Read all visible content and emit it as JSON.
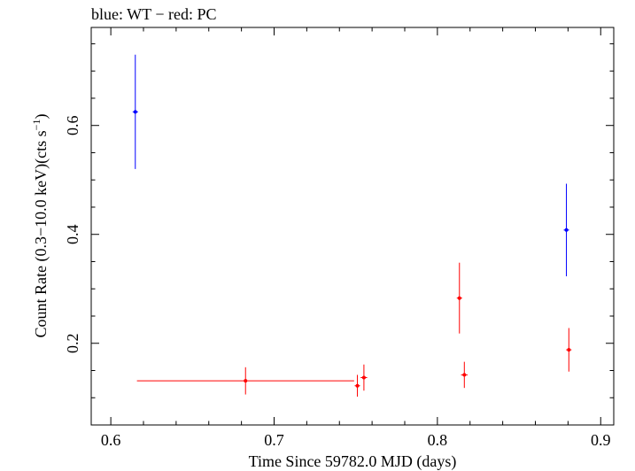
{
  "chart_data": {
    "type": "scatter",
    "title": "blue: WT − red: PC",
    "xlabel": "Time Since 59782.0 MJD (days)",
    "ylabel_main": "Count Rate (0.3−10.0 keV)(cts s",
    "ylabel_sup": "−1",
    "ylabel_close": ")",
    "xlim": [
      0.588,
      0.908
    ],
    "ylim": [
      0.05,
      0.78
    ],
    "x_ticks": [
      0.6,
      0.7,
      0.8,
      0.9
    ],
    "x_tick_labels": [
      "0.6",
      "0.7",
      "0.8",
      "0.9"
    ],
    "y_ticks": [
      0.2,
      0.4,
      0.6
    ],
    "y_tick_labels": [
      "0.2",
      "0.4",
      "0.6"
    ],
    "grid": false,
    "series": [
      {
        "name": "WT",
        "color": "#0000ff",
        "points": [
          {
            "x": 0.615,
            "y": 0.625,
            "yerr": 0.105,
            "xerr": 0.0
          },
          {
            "x": 0.879,
            "y": 0.408,
            "yerr": 0.085,
            "xerr": 0.0
          }
        ]
      },
      {
        "name": "PC",
        "color": "#ff0000",
        "points": [
          {
            "x": 0.6825,
            "y": 0.131,
            "yerr": 0.025,
            "xerr": 0.0665
          },
          {
            "x": 0.751,
            "y": 0.122,
            "yerr": 0.02,
            "xerr": 0.001
          },
          {
            "x": 0.755,
            "y": 0.137,
            "yerr": 0.024,
            "xerr": 0.002
          },
          {
            "x": 0.8135,
            "y": 0.283,
            "yerr": 0.065,
            "xerr": 0.001
          },
          {
            "x": 0.8165,
            "y": 0.142,
            "yerr": 0.024,
            "xerr": 0.002
          },
          {
            "x": 0.8805,
            "y": 0.188,
            "yerr": 0.04,
            "xerr": 0.001
          }
        ]
      }
    ]
  }
}
